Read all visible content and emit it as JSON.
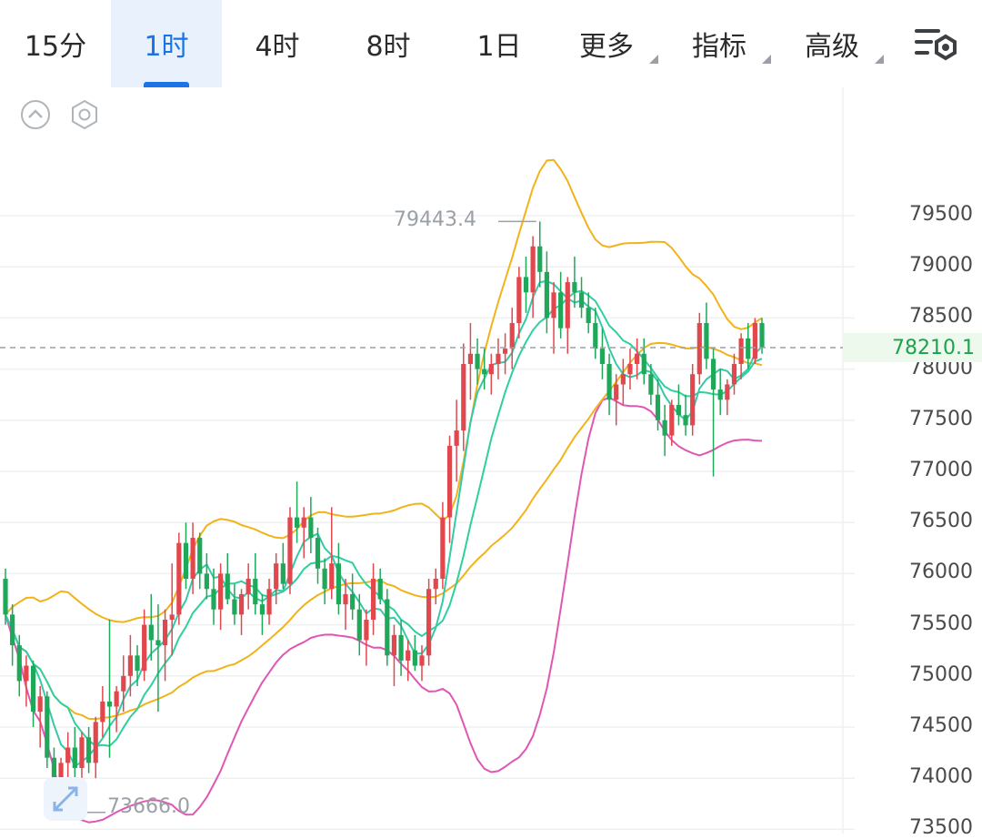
{
  "tabs": [
    {
      "label": "15分",
      "active": false
    },
    {
      "label": "1时",
      "active": true
    },
    {
      "label": "4时",
      "active": false
    },
    {
      "label": "8时",
      "active": false
    },
    {
      "label": "1日",
      "active": false
    },
    {
      "label": "更多",
      "active": false
    },
    {
      "label": "指标",
      "active": false
    },
    {
      "label": "高级",
      "active": false
    }
  ],
  "icons": {
    "settings": "settings-list-icon",
    "collapse": "chevron-up-circle-icon",
    "indicator": "hexagon-settings-icon",
    "fullscreen": "expand-arrows-icon"
  },
  "colors": {
    "up": "#e0484e",
    "down": "#1fa85a",
    "boll_upper": "#f2b31a",
    "boll_lower": "#e056b5",
    "ma_fast": "#36c9a8",
    "ma_mid": "#2fcf9f",
    "ma_slow": "#f2b31a"
  },
  "last_price": "78210.1",
  "high_label": "79443.4",
  "low_label": "73666.0",
  "y_axis_labels": [
    "79500",
    "79000",
    "78500",
    "78000",
    "77500",
    "77000",
    "76500",
    "76000",
    "75500",
    "75000",
    "74500",
    "74000",
    "73500"
  ],
  "chart_data": {
    "type": "candlestick",
    "interval": "1时",
    "ylim": [
      73500,
      79800
    ],
    "last": 78210.1,
    "high": 79443.4,
    "low": 73666.0,
    "candles": [
      [
        75950,
        76050,
        75500,
        75600
      ],
      [
        75600,
        75700,
        75100,
        75300
      ],
      [
        75300,
        75400,
        74800,
        74950
      ],
      [
        74950,
        75200,
        74700,
        75100
      ],
      [
        75100,
        75150,
        74500,
        74650
      ],
      [
        74650,
        74900,
        74300,
        74800
      ],
      [
        74800,
        74850,
        74100,
        74200
      ],
      [
        74200,
        74300,
        73700,
        73850
      ],
      [
        73850,
        74200,
        73666,
        74150
      ],
      [
        74150,
        74450,
        73950,
        74300
      ],
      [
        74300,
        74500,
        74000,
        74100
      ],
      [
        74100,
        74450,
        74000,
        74400
      ],
      [
        74400,
        74500,
        74050,
        74150
      ],
      [
        74150,
        74600,
        74000,
        74550
      ],
      [
        74550,
        74900,
        74400,
        74750
      ],
      [
        74750,
        75550,
        74200,
        74700
      ],
      [
        74700,
        74900,
        74450,
        74850
      ],
      [
        74850,
        75200,
        74650,
        75000
      ],
      [
        75000,
        75400,
        74800,
        75200
      ],
      [
        75200,
        75300,
        74900,
        75050
      ],
      [
        75050,
        75650,
        74950,
        75500
      ],
      [
        75500,
        75800,
        75150,
        75350
      ],
      [
        75350,
        75700,
        74650,
        75300
      ],
      [
        75300,
        75650,
        74950,
        75550
      ],
      [
        75550,
        76100,
        75200,
        75600
      ],
      [
        75600,
        76400,
        75500,
        76300
      ],
      [
        76300,
        76500,
        75850,
        75950
      ],
      [
        75950,
        76500,
        75800,
        76350
      ],
      [
        76350,
        76400,
        75850,
        76000
      ],
      [
        76000,
        76200,
        75750,
        75850
      ],
      [
        75850,
        76050,
        75500,
        75650
      ],
      [
        75650,
        76100,
        75450,
        76000
      ],
      [
        76000,
        76200,
        75700,
        75750
      ],
      [
        75750,
        75900,
        75500,
        75600
      ],
      [
        75600,
        75850,
        75400,
        75800
      ],
      [
        75800,
        76100,
        75650,
        75950
      ],
      [
        75950,
        76200,
        75600,
        75700
      ],
      [
        75700,
        75800,
        75400,
        75600
      ],
      [
        75600,
        75950,
        75500,
        75850
      ],
      [
        75850,
        76200,
        75700,
        76100
      ],
      [
        76100,
        76300,
        75850,
        75900
      ],
      [
        75900,
        76650,
        75800,
        76550
      ],
      [
        76550,
        76900,
        76300,
        76450
      ],
      [
        76450,
        76650,
        76150,
        76550
      ],
      [
        76550,
        76750,
        76200,
        76350
      ],
      [
        76350,
        76450,
        75900,
        76050
      ],
      [
        76050,
        76150,
        75700,
        75850
      ],
      [
        75850,
        76650,
        75750,
        76100
      ],
      [
        76100,
        76300,
        75600,
        75700
      ],
      [
        75700,
        75950,
        75450,
        75800
      ],
      [
        75800,
        76000,
        75550,
        75650
      ],
      [
        75650,
        75800,
        75200,
        75350
      ],
      [
        75350,
        75650,
        75100,
        75550
      ],
      [
        75550,
        76100,
        75400,
        75950
      ],
      [
        75950,
        76050,
        75700,
        75750
      ],
      [
        75750,
        75850,
        75100,
        75200
      ],
      [
        75200,
        75500,
        74900,
        75400
      ],
      [
        75400,
        75550,
        75000,
        75150
      ],
      [
        75150,
        75350,
        74950,
        75250
      ],
      [
        75250,
        75400,
        75050,
        75100
      ],
      [
        75100,
        75300,
        74950,
        75200
      ],
      [
        75200,
        75950,
        75100,
        75850
      ],
      [
        75850,
        76050,
        75700,
        75950
      ],
      [
        75950,
        76700,
        75850,
        76550
      ],
      [
        76550,
        77350,
        76300,
        77250
      ],
      [
        77250,
        77700,
        76900,
        77400
      ],
      [
        77400,
        78250,
        77200,
        78050
      ],
      [
        78050,
        78450,
        77700,
        78150
      ],
      [
        78150,
        78300,
        77850,
        78000
      ],
      [
        78000,
        78200,
        77800,
        77950
      ],
      [
        77950,
        78150,
        77750,
        78050
      ],
      [
        78050,
        78300,
        77900,
        78150
      ],
      [
        78150,
        78350,
        77950,
        78200
      ],
      [
        78200,
        78600,
        78000,
        78450
      ],
      [
        78450,
        79000,
        78300,
        78900
      ],
      [
        78900,
        79100,
        78550,
        78750
      ],
      [
        78750,
        79300,
        78500,
        79200
      ],
      [
        79200,
        79443,
        78800,
        78950
      ],
      [
        78950,
        79150,
        78350,
        78500
      ],
      [
        78500,
        78850,
        78150,
        78750
      ],
      [
        78750,
        78950,
        78300,
        78400
      ],
      [
        78400,
        78900,
        78150,
        78850
      ],
      [
        78850,
        79100,
        78600,
        78750
      ],
      [
        78750,
        78900,
        78500,
        78600
      ],
      [
        78600,
        78750,
        78350,
        78450
      ],
      [
        78450,
        78600,
        78100,
        78200
      ],
      [
        78200,
        78400,
        77900,
        78050
      ],
      [
        78050,
        78150,
        77550,
        77700
      ],
      [
        77700,
        77950,
        77450,
        77850
      ],
      [
        77850,
        78100,
        77650,
        77950
      ],
      [
        77950,
        78200,
        77800,
        78050
      ],
      [
        78050,
        78300,
        77900,
        78150
      ],
      [
        78150,
        78300,
        77850,
        77950
      ],
      [
        77950,
        78050,
        77650,
        77750
      ],
      [
        77750,
        77900,
        77400,
        77500
      ],
      [
        77500,
        77650,
        77150,
        77350
      ],
      [
        77350,
        77700,
        77250,
        77650
      ],
      [
        77650,
        77850,
        77450,
        77550
      ],
      [
        77550,
        77750,
        77350,
        77450
      ],
      [
        77450,
        78050,
        77350,
        77950
      ],
      [
        77950,
        78550,
        77850,
        78450
      ],
      [
        78450,
        78650,
        78000,
        78100
      ],
      [
        78100,
        78200,
        76950,
        77800
      ],
      [
        77800,
        78000,
        77550,
        77700
      ],
      [
        77700,
        77900,
        77550,
        77850
      ],
      [
        77850,
        78150,
        77750,
        78050
      ],
      [
        78050,
        78350,
        77900,
        78300
      ],
      [
        78300,
        78450,
        78000,
        78100
      ],
      [
        78100,
        78500,
        78050,
        78450
      ],
      [
        78450,
        78500,
        78150,
        78210
      ]
    ]
  }
}
